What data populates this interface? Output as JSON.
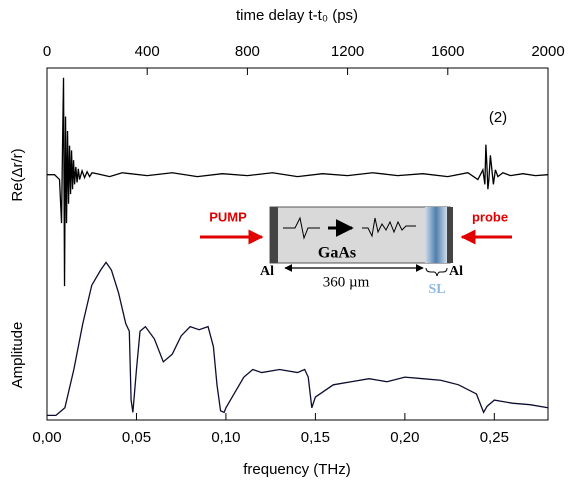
{
  "chart_data": [
    {
      "type": "line",
      "x_label": "time delay t-t₀ (ps)",
      "y_label": "Re(Δr/r)",
      "annotation": "(2)",
      "xlim": [
        0,
        2000
      ],
      "xticks": [
        0,
        400,
        800,
        1200,
        1600,
        2000
      ],
      "ylim": [
        -2.53,
        1.1
      ],
      "color": "#000000",
      "x": [
        0,
        30,
        50,
        58,
        62,
        66,
        70,
        74,
        78,
        82,
        86,
        90,
        94,
        98,
        102,
        106,
        110,
        115,
        120,
        125,
        130,
        140,
        150,
        160,
        170,
        180,
        200,
        250,
        300,
        400,
        500,
        600,
        700,
        800,
        900,
        1000,
        1100,
        1200,
        1300,
        1400,
        1500,
        1600,
        1680,
        1720,
        1740,
        1748,
        1752,
        1756,
        1760,
        1764,
        1770,
        1776,
        1782,
        1790,
        1800,
        1820,
        1850,
        1900,
        1950,
        2000
      ],
      "values": [
        0,
        0,
        -0.05,
        -0.5,
        0.3,
        1.0,
        -1.15,
        0.6,
        -0.5,
        0.45,
        -0.3,
        0.3,
        -0.2,
        0.25,
        -0.15,
        0.15,
        -0.1,
        0.08,
        -0.08,
        0.06,
        -0.05,
        0.04,
        -0.03,
        0.03,
        -0.02,
        0.02,
        0.01,
        -0.02,
        0.02,
        -0.01,
        0.02,
        -0.02,
        0.01,
        -0.01,
        0.02,
        -0.02,
        0.01,
        -0.01,
        0.02,
        -0.01,
        0.01,
        -0.02,
        0.02,
        -0.05,
        0.05,
        -0.1,
        0.31,
        0.1,
        -0.15,
        -0.05,
        0.2,
        0.05,
        -0.1,
        0.05,
        -0.02,
        0.02,
        -0.01,
        0.01,
        -0.01,
        0
      ]
    },
    {
      "type": "line",
      "x_label": "frequency (THz)",
      "y_label": "Amplitude",
      "xlim": [
        0,
        0.28
      ],
      "xticks": [
        {
          "value": 0,
          "label": "0,00"
        },
        {
          "value": 0.05,
          "label": "0,05"
        },
        {
          "value": 0.1,
          "label": "0,10"
        },
        {
          "value": 0.15,
          "label": "0,15"
        },
        {
          "value": 0.2,
          "label": "0,20"
        },
        {
          "value": 0.25,
          "label": "0,25"
        }
      ],
      "ylim": [
        -0.03,
        2.27
      ],
      "color": "#0d0d30",
      "x": [
        0,
        0.005,
        0.01,
        0.015,
        0.02,
        0.025,
        0.03,
        0.033,
        0.036,
        0.04,
        0.044,
        0.046,
        0.047,
        0.048,
        0.05,
        0.052,
        0.055,
        0.06,
        0.065,
        0.07,
        0.075,
        0.08,
        0.085,
        0.09,
        0.093,
        0.095,
        0.097,
        0.099,
        0.1,
        0.105,
        0.11,
        0.115,
        0.12,
        0.13,
        0.14,
        0.144,
        0.146,
        0.148,
        0.15,
        0.16,
        0.17,
        0.18,
        0.19,
        0.2,
        0.21,
        0.22,
        0.23,
        0.24,
        0.242,
        0.244,
        0.246,
        0.25,
        0.26,
        0.27,
        0.28
      ],
      "values": [
        0,
        0,
        0.05,
        0.3,
        0.6,
        0.85,
        0.95,
        1.0,
        0.95,
        0.8,
        0.6,
        0.55,
        0.1,
        0.02,
        0.3,
        0.55,
        0.58,
        0.5,
        0.35,
        0.4,
        0.52,
        0.58,
        0.56,
        0.58,
        0.45,
        0.2,
        0.03,
        0.02,
        0.05,
        0.15,
        0.25,
        0.3,
        0.28,
        0.3,
        0.28,
        0.3,
        0.25,
        0.05,
        0.12,
        0.2,
        0.22,
        0.24,
        0.22,
        0.25,
        0.24,
        0.23,
        0.2,
        0.14,
        0.08,
        0.02,
        0.06,
        0.1,
        0.08,
        0.07,
        0.05
      ]
    }
  ],
  "inset": {
    "pump": "PUMP",
    "probe": "probe",
    "material": "GaAs",
    "left_contact": "Al",
    "right_contact": "Al",
    "thickness": "360 µm",
    "layer": "SL"
  }
}
